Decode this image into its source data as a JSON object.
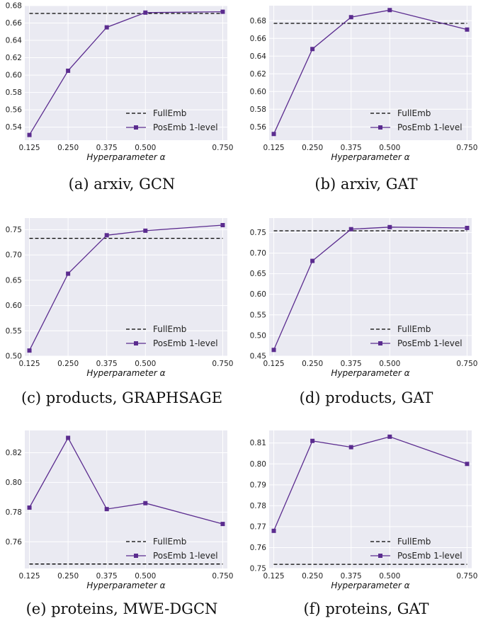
{
  "colors": {
    "background": "#eaeaf2",
    "grid": "#ffffff",
    "fullemb": "#000000",
    "posemb": "#5b2c8f"
  },
  "chart_data": [
    {
      "type": "line",
      "caption": "(a) arxiv, GCN",
      "xlabel": "Hyperparameter α",
      "x": [
        0.125,
        0.25,
        0.375,
        0.5,
        0.75
      ],
      "xticks": [
        "0.125",
        "0.250",
        "0.375",
        "0.500",
        "0.750"
      ],
      "yticks": [
        "0.54",
        "0.56",
        "0.58",
        "0.60",
        "0.62",
        "0.64",
        "0.66",
        "0.68"
      ],
      "ylim": [
        0.525,
        0.68
      ],
      "legend_position": "lower-right",
      "series": [
        {
          "name": "FullEmb",
          "style": "dashed",
          "values": [
            0.671,
            0.671,
            0.671,
            0.671,
            0.671
          ]
        },
        {
          "name": "PosEmb 1-level",
          "style": "solid-square",
          "values": [
            0.531,
            0.605,
            0.655,
            0.672,
            0.673
          ]
        }
      ]
    },
    {
      "type": "line",
      "caption": "(b) arxiv, GAT",
      "xlabel": "Hyperparameter α",
      "x": [
        0.125,
        0.25,
        0.375,
        0.5,
        0.75
      ],
      "xticks": [
        "0.125",
        "0.250",
        "0.375",
        "0.500",
        "0.750"
      ],
      "yticks": [
        "0.56",
        "0.58",
        "0.60",
        "0.62",
        "0.64",
        "0.66",
        "0.68"
      ],
      "ylim": [
        0.545,
        0.697
      ],
      "legend_position": "lower-right",
      "series": [
        {
          "name": "FullEmb",
          "style": "dashed",
          "values": [
            0.677,
            0.677,
            0.677,
            0.677,
            0.677
          ]
        },
        {
          "name": "PosEmb 1-level",
          "style": "solid-square",
          "values": [
            0.552,
            0.648,
            0.684,
            0.692,
            0.67
          ]
        }
      ]
    },
    {
      "type": "line",
      "caption": "(c) products, GRAPHSAGE",
      "xlabel": "Hyperparameter α",
      "x": [
        0.125,
        0.25,
        0.375,
        0.5,
        0.75
      ],
      "xticks": [
        "0.125",
        "0.250",
        "0.375",
        "0.500",
        "0.750"
      ],
      "yticks": [
        "0.50",
        "0.55",
        "0.60",
        "0.65",
        "0.70",
        "0.75"
      ],
      "ylim": [
        0.5,
        0.773
      ],
      "legend_position": "lower-right",
      "series": [
        {
          "name": "FullEmb",
          "style": "dashed",
          "values": [
            0.733,
            0.733,
            0.733,
            0.733,
            0.733
          ]
        },
        {
          "name": "PosEmb 1-level",
          "style": "solid-square",
          "values": [
            0.511,
            0.663,
            0.739,
            0.748,
            0.759
          ]
        }
      ]
    },
    {
      "type": "line",
      "caption": "(d) products, GAT",
      "xlabel": "Hyperparameter α",
      "x": [
        0.125,
        0.25,
        0.375,
        0.5,
        0.75
      ],
      "xticks": [
        "0.125",
        "0.250",
        "0.375",
        "0.500",
        "0.750"
      ],
      "yticks": [
        "0.45",
        "0.50",
        "0.55",
        "0.60",
        "0.65",
        "0.70",
        "0.75"
      ],
      "ylim": [
        0.45,
        0.785
      ],
      "legend_position": "lower-right",
      "series": [
        {
          "name": "FullEmb",
          "style": "dashed",
          "values": [
            0.754,
            0.754,
            0.754,
            0.754,
            0.754
          ]
        },
        {
          "name": "PosEmb 1-level",
          "style": "solid-square",
          "values": [
            0.465,
            0.681,
            0.758,
            0.763,
            0.761
          ]
        }
      ]
    },
    {
      "type": "line",
      "caption": "(e) proteins, MWE-DGCN",
      "xlabel": "Hyperparameter α",
      "x": [
        0.125,
        0.25,
        0.375,
        0.5,
        0.75
      ],
      "xticks": [
        "0.125",
        "0.250",
        "0.375",
        "0.500",
        "0.750"
      ],
      "yticks": [
        "0.76",
        "0.78",
        "0.80",
        "0.82"
      ],
      "ylim": [
        0.742,
        0.835
      ],
      "legend_position": "lower-right",
      "series": [
        {
          "name": "FullEmb",
          "style": "dashed",
          "values": [
            0.745,
            0.745,
            0.745,
            0.745,
            0.745
          ]
        },
        {
          "name": "PosEmb 1-level",
          "style": "solid-square",
          "values": [
            0.783,
            0.83,
            0.782,
            0.786,
            0.772
          ]
        }
      ]
    },
    {
      "type": "line",
      "caption": "(f) proteins, GAT",
      "xlabel": "Hyperparameter α",
      "x": [
        0.125,
        0.25,
        0.375,
        0.5,
        0.75
      ],
      "xticks": [
        "0.125",
        "0.250",
        "0.375",
        "0.500",
        "0.750"
      ],
      "yticks": [
        "0.75",
        "0.76",
        "0.77",
        "0.78",
        "0.79",
        "0.80",
        "0.81"
      ],
      "ylim": [
        0.75,
        0.816
      ],
      "legend_position": "lower-right",
      "series": [
        {
          "name": "FullEmb",
          "style": "dashed",
          "values": [
            0.752,
            0.752,
            0.752,
            0.752,
            0.752
          ]
        },
        {
          "name": "PosEmb 1-level",
          "style": "solid-square",
          "values": [
            0.768,
            0.811,
            0.808,
            0.813,
            0.8
          ]
        }
      ]
    }
  ]
}
